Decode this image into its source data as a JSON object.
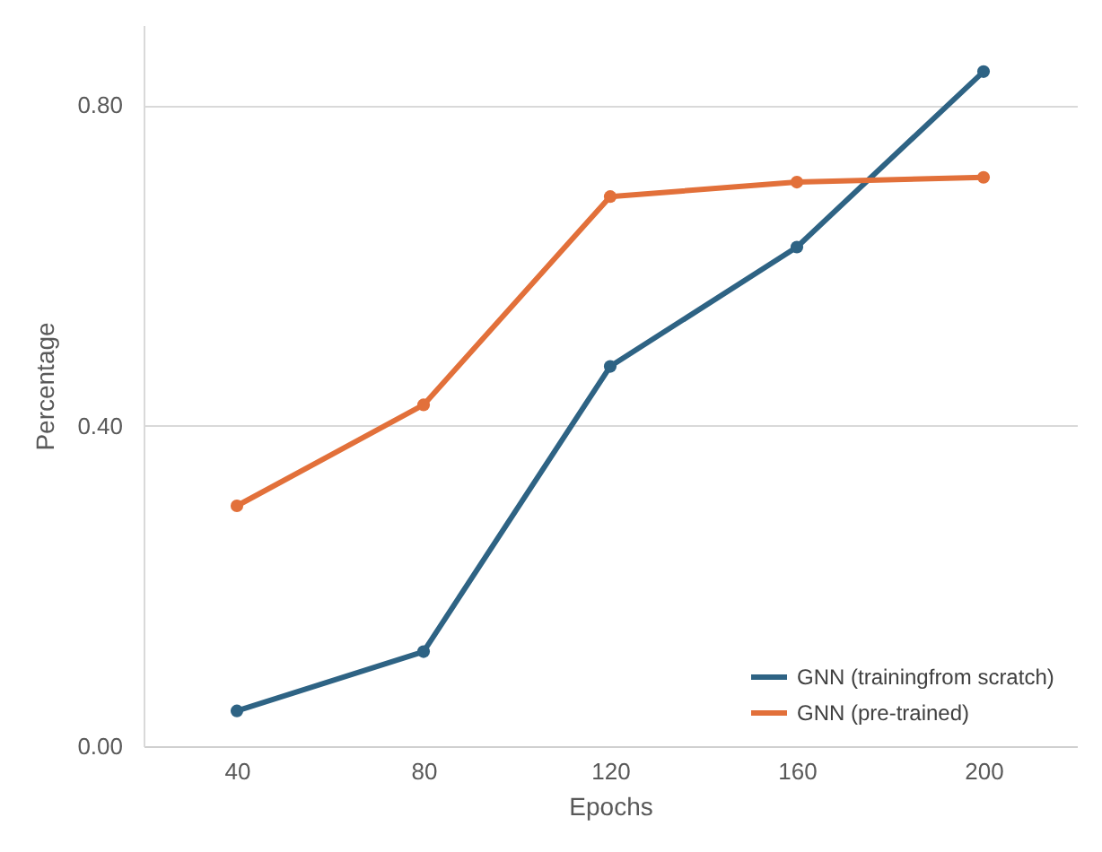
{
  "chart_data": {
    "type": "line",
    "xlabel": "Epochs",
    "ylabel": "Percentage",
    "categories": [
      "40",
      "80",
      "120",
      "160",
      "200"
    ],
    "series": [
      {
        "name": "GNN (trainingfrom scratch)",
        "color": "#2e6384",
        "values": [
          0.044,
          0.118,
          0.474,
          0.623,
          0.842
        ]
      },
      {
        "name": "GNN (pre-trained)",
        "color": "#e2703a",
        "values": [
          0.3,
          0.426,
          0.686,
          0.704,
          0.71
        ]
      }
    ],
    "ylim": [
      0,
      0.9
    ],
    "yticks": [
      {
        "value": 0,
        "label": "0.00"
      },
      {
        "value": 0.4,
        "label": "0.40"
      },
      {
        "value": 0.8,
        "label": "0.80"
      }
    ],
    "grid": "y",
    "legend": "bottom right",
    "marker": "circle",
    "line_style": "solid"
  }
}
